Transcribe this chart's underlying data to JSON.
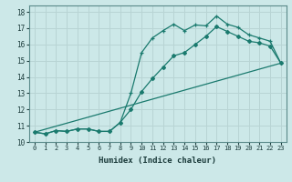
{
  "title": "",
  "xlabel": "Humidex (Indice chaleur)",
  "bg_color": "#cce8e8",
  "grid_color": "#b8d4d4",
  "line_color": "#1a7a6e",
  "xlim": [
    -0.5,
    23.5
  ],
  "ylim": [
    10.0,
    18.4
  ],
  "xticks": [
    0,
    1,
    2,
    3,
    4,
    5,
    6,
    7,
    8,
    9,
    10,
    11,
    12,
    13,
    14,
    15,
    16,
    17,
    18,
    19,
    20,
    21,
    22,
    23
  ],
  "yticks": [
    10,
    11,
    12,
    13,
    14,
    15,
    16,
    17,
    18
  ],
  "line1_y": [
    10.6,
    10.5,
    10.7,
    10.65,
    10.8,
    10.8,
    10.65,
    10.65,
    11.2,
    13.0,
    15.5,
    16.4,
    16.85,
    17.25,
    16.85,
    17.2,
    17.15,
    17.75,
    17.25,
    17.05,
    16.6,
    16.4,
    16.2,
    14.85
  ],
  "line2_y": [
    10.6,
    10.5,
    10.7,
    10.65,
    10.8,
    10.8,
    10.65,
    10.65,
    11.2,
    12.0,
    13.1,
    13.9,
    14.6,
    15.3,
    15.5,
    16.0,
    16.5,
    17.1,
    16.8,
    16.5,
    16.2,
    16.1,
    15.9,
    14.85
  ],
  "line3_x": [
    0,
    23
  ],
  "line3_y": [
    10.6,
    14.85
  ]
}
